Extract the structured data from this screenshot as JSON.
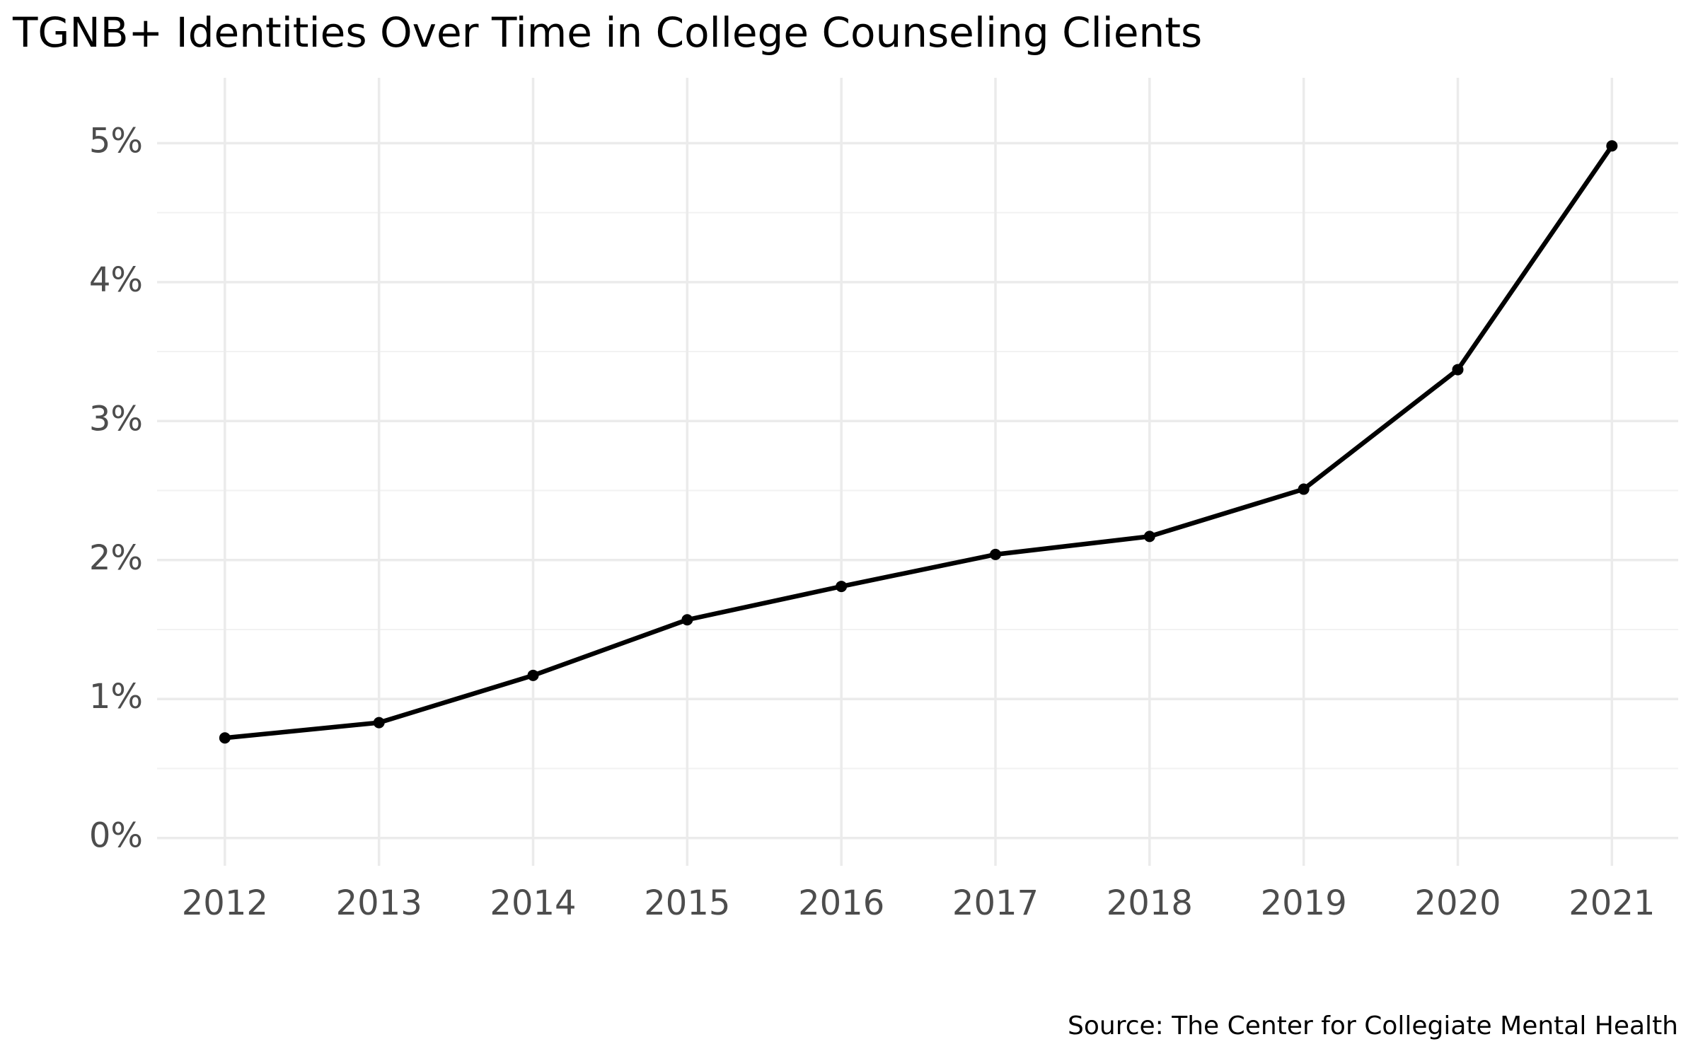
{
  "chart_data": {
    "type": "line",
    "title": "TGNB+ Identities Over Time in College Counseling Clients",
    "caption": "Source: The Center for Collegiate Mental Health",
    "x": [
      2012,
      2013,
      2014,
      2015,
      2016,
      2017,
      2018,
      2019,
      2020,
      2021
    ],
    "values": [
      0.72,
      0.83,
      1.17,
      1.57,
      1.81,
      2.04,
      2.17,
      2.51,
      3.37,
      4.98
    ],
    "color": "#000000",
    "xlim": [
      2011.56,
      2021.43
    ],
    "xticks": [
      2012,
      2013,
      2014,
      2015,
      2016,
      2017,
      2018,
      2019,
      2020,
      2021
    ],
    "ylim": [
      -0.2,
      5.47
    ],
    "yticks": [
      {
        "value": 0,
        "label": "0%"
      },
      {
        "value": 1,
        "label": "1%"
      },
      {
        "value": 2,
        "label": "2%"
      },
      {
        "value": 3,
        "label": "3%"
      },
      {
        "value": 4,
        "label": "4%"
      },
      {
        "value": 5,
        "label": "5%"
      }
    ],
    "yticks_minor": [
      0.5,
      1.5,
      2.5,
      3.5,
      4.5
    ],
    "grid": true
  }
}
